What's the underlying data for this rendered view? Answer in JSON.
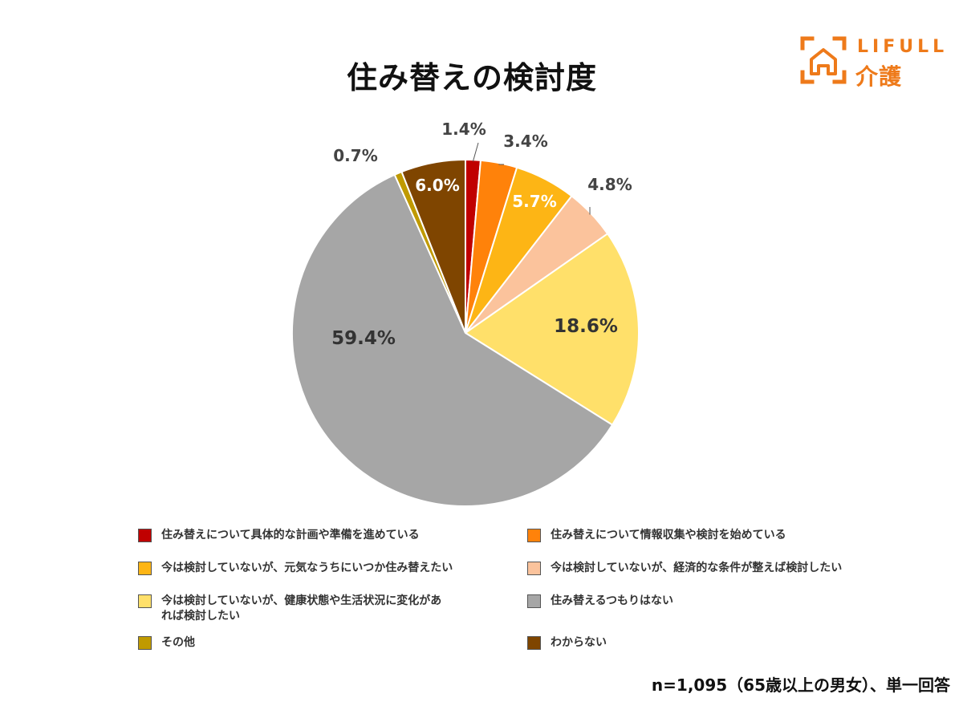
{
  "title": "住み替えの検討度",
  "logo": {
    "en": "LIFULL",
    "jp": "介護",
    "color": "#EE7A1A"
  },
  "chart_data": {
    "type": "pie",
    "title": "住み替えの検討度",
    "start_angle_deg": 0,
    "direction": "clockwise",
    "slices": [
      {
        "label": "住み替えについて具体的な計画や準備を進めている",
        "value": 1.4,
        "color": "#C00000"
      },
      {
        "label": "住み替えについて情報収集や検討を始めている",
        "value": 3.4,
        "color": "#FF820A"
      },
      {
        "label": "今は検討していないが、元気なうちにいつか住み替えたい",
        "value": 5.7,
        "color": "#FDB515"
      },
      {
        "label": "今は検討していないが、経済的な条件が整えば検討したい",
        "value": 4.8,
        "color": "#FBC39C"
      },
      {
        "label": "今は検討していないが、健康状態や生活状況に変化があれば検討したい",
        "value": 18.6,
        "color": "#FFE06A"
      },
      {
        "label": "住み替えるつもりはない",
        "value": 59.4,
        "color": "#A6A6A6"
      },
      {
        "label": "その他",
        "value": 0.7,
        "color": "#C09A00"
      },
      {
        "label": "わからない",
        "value": 6.0,
        "color": "#7F4500"
      }
    ],
    "data_labels": [
      "1.4%",
      "3.4%",
      "5.7%",
      "4.8%",
      "18.6%",
      "59.4%",
      "0.7%",
      "6.0%"
    ],
    "legend_placement": "bottom"
  },
  "legend": {
    "items": [
      "住み替えについて具体的な計画や準備を進めている",
      "住み替えについて情報収集や検討を始めている",
      "今は検討していないが、元気なうちにいつか住み替えたい",
      "今は検討していないが、経済的な条件が整えば検討したい",
      "今は検討していないが、健康状態や生活状況に変化があ\nれば検討したい",
      "住み替えるつもりはない",
      "その他",
      "わからない"
    ]
  },
  "footnote": "n=1,095（65歳以上の男女）、単一回答"
}
